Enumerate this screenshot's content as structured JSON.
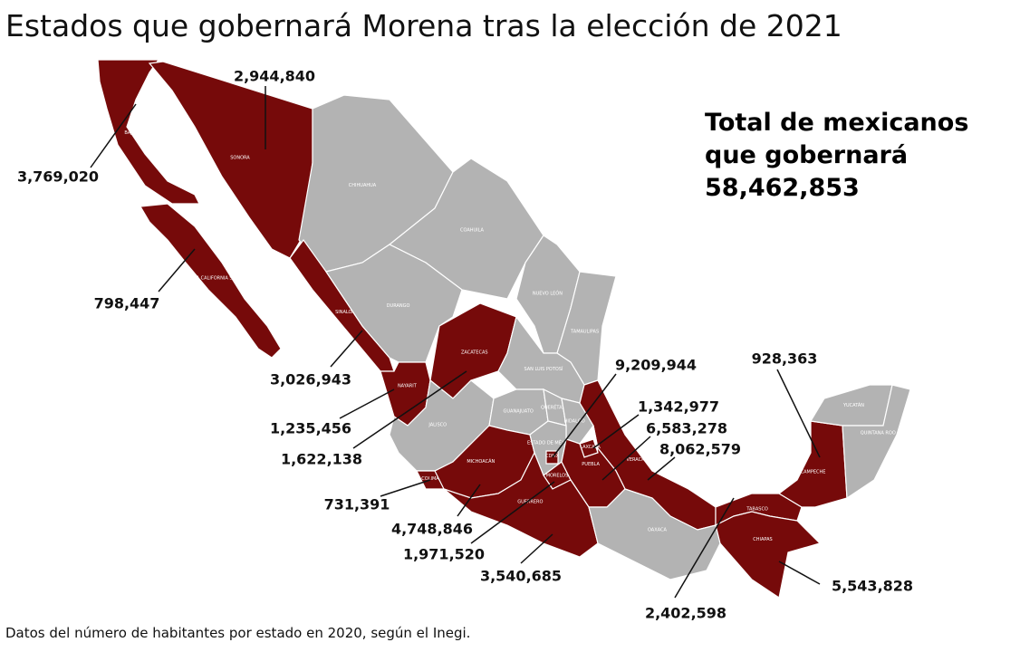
{
  "title": "Estados que gobernará Morena tras la elección de 2021",
  "total": {
    "lines": [
      "Total de mexicanos",
      "que gobernará"
    ],
    "value": "58,462,853"
  },
  "states": [
    {
      "name": "BAJA CALIFORNIA",
      "population": "3,769,020"
    },
    {
      "name": "BAJA CALIFORNIA SUR",
      "population": "798,447"
    },
    {
      "name": "SONORA",
      "population": "2,944,840"
    },
    {
      "name": "CHIHUAHUA"
    },
    {
      "name": "COAHUILA"
    },
    {
      "name": "NUEVO LEÓN"
    },
    {
      "name": "TAMAULIPAS"
    },
    {
      "name": "SINALOA",
      "population": "3,026,943"
    },
    {
      "name": "DURANGO"
    },
    {
      "name": "ZACATECAS",
      "population": "1,622,138"
    },
    {
      "name": "NAYARIT",
      "population": "1,235,456"
    },
    {
      "name": "JALISCO"
    },
    {
      "name": "SAN LUIS POTOSÍ"
    },
    {
      "name": "GUANAJUATO"
    },
    {
      "name": "QUERÉTARO"
    },
    {
      "name": "HIDALGO"
    },
    {
      "name": "VERACRUZ",
      "population": "8,062,579"
    },
    {
      "name": "MICHOACÁN",
      "population": "4,748,846"
    },
    {
      "name": "COLIMA",
      "population": "731,391"
    },
    {
      "name": "ESTADO DE MÉXICO"
    },
    {
      "name": "CDMX",
      "population": "9,209,944"
    },
    {
      "name": "MORELOS",
      "population": "1,971,520"
    },
    {
      "name": "TLAXCALA",
      "population": "1,342,977"
    },
    {
      "name": "PUEBLA",
      "population": "6,583,278"
    },
    {
      "name": "GUERRERO",
      "population": "3,540,685"
    },
    {
      "name": "OAXACA"
    },
    {
      "name": "TABASCO",
      "population": "2,402,598"
    },
    {
      "name": "CHIAPAS",
      "population": "5,543,828"
    },
    {
      "name": "CAMPECHE",
      "population": "928,363"
    },
    {
      "name": "YUCATÁN"
    },
    {
      "name": "QUINTANA ROO"
    }
  ],
  "note": "Datos del número de habitantes por estado en 2020, según el Inegi."
}
